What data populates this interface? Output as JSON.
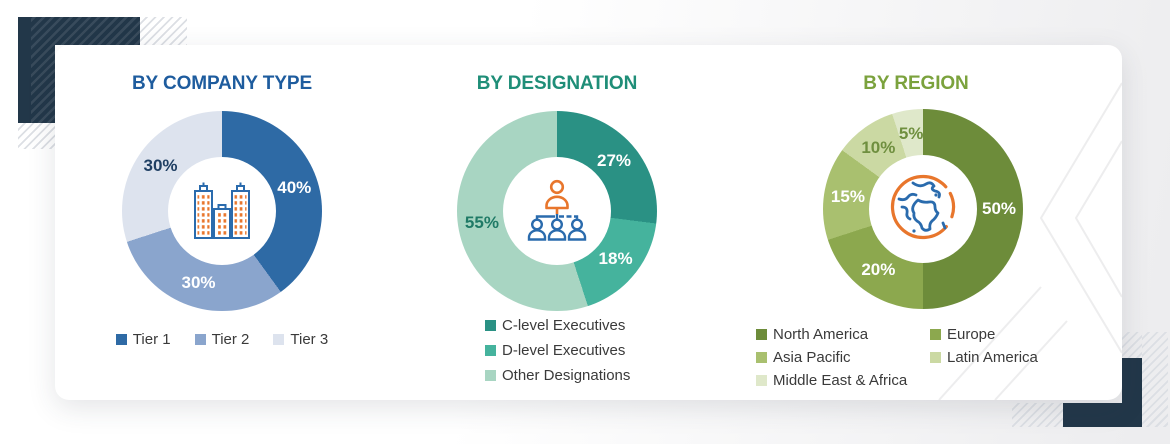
{
  "page": {
    "card_background": "#ffffff",
    "accent_navy": "#223749",
    "icon_orange": "#e8762c",
    "icon_blue": "#2a6bad"
  },
  "chart_data": [
    {
      "type": "donut",
      "title": "BY COMPANY TYPE",
      "title_color": "#1e5c9e",
      "center_icon": "buildings-icon",
      "legend_layout": "row",
      "start_angle": "top-clockwise",
      "segments": [
        {
          "label": "Tier 1",
          "value": 40,
          "color": "#2e6aa5",
          "value_label_color": "#ffffff"
        },
        {
          "label": "Tier 2",
          "value": 30,
          "color": "#8aa5cd",
          "value_label_color": "#ffffff"
        },
        {
          "label": "Tier 3",
          "value": 30,
          "color": "#dde3ee",
          "value_label_color": "#1f3f63"
        }
      ]
    },
    {
      "type": "donut",
      "title": "BY DESIGNATION",
      "title_color": "#1f8e78",
      "center_icon": "org-chart-icon",
      "legend_layout": "column",
      "start_angle": "top-clockwise",
      "segments": [
        {
          "label": "C-level Executives",
          "value": 27,
          "color": "#2a9184",
          "value_label_color": "#ffffff"
        },
        {
          "label": "D-level Executives",
          "value": 18,
          "color": "#45b39d",
          "value_label_color": "#ffffff"
        },
        {
          "label": "Other Designations",
          "value": 55,
          "color": "#a8d5c2",
          "value_label_color": "#1f7a66"
        }
      ]
    },
    {
      "type": "donut",
      "title": "BY REGION",
      "title_color": "#7ba23d",
      "center_icon": "globe-icon",
      "legend_layout": "grid-2col",
      "start_angle": "top-clockwise",
      "segments": [
        {
          "label": "North America",
          "value": 50,
          "color": "#6d8c3a",
          "value_label_color": "#ffffff"
        },
        {
          "label": "Europe",
          "value": 20,
          "color": "#8ca84e",
          "value_label_color": "#ffffff"
        },
        {
          "label": "Asia Pacific",
          "value": 15,
          "color": "#a9c06f",
          "value_label_color": "#ffffff"
        },
        {
          "label": "Latin America",
          "value": 10,
          "color": "#cbd9a3",
          "value_label_color": "#6f8f3f"
        },
        {
          "label": "Middle East & Africa",
          "value": 5,
          "color": "#dfe8ca",
          "value_label_color": "#6f8f3f"
        }
      ]
    }
  ]
}
